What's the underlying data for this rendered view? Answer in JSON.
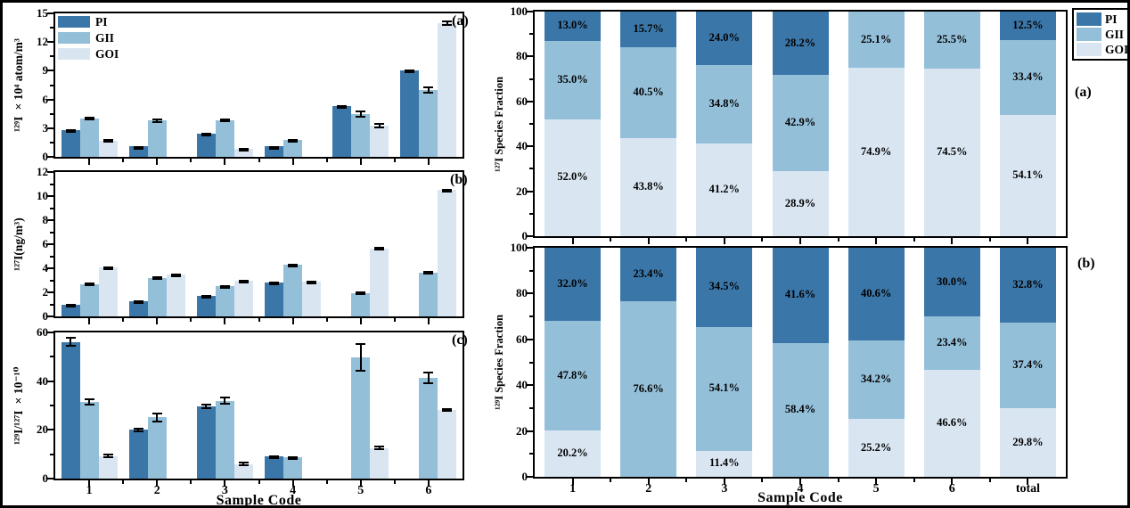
{
  "colors": {
    "PI": "#3B76A8",
    "GII": "#94BFD9",
    "GOI": "#D9E6F2",
    "axis": "#000000"
  },
  "legend": {
    "items": [
      {
        "label": "PI"
      },
      {
        "label": "GII"
      },
      {
        "label": "GOI"
      }
    ]
  },
  "chart_data": [
    {
      "id": "left-a",
      "type": "bar",
      "panel_label": "(a)",
      "ylabel": "¹²⁹I ×10⁴ atom/m³",
      "ylim": [
        0,
        15
      ],
      "yticks": [
        0,
        3,
        6,
        9,
        12,
        15
      ],
      "categories": [
        "1",
        "2",
        "3",
        "4",
        "5",
        "6"
      ],
      "show_xticklabels": false,
      "series": [
        {
          "name": "PI",
          "values": [
            2.75,
            1.1,
            2.4,
            1.1,
            5.35,
            9.0
          ],
          "errors": [
            0.1,
            0.06,
            0.1,
            0.06,
            0.1,
            0.12
          ]
        },
        {
          "name": "GII",
          "values": [
            4.0,
            3.8,
            3.8,
            1.75,
            4.45,
            7.0
          ],
          "errors": [
            0.2,
            0.25,
            0.18,
            0.1,
            0.35,
            0.35
          ]
        },
        {
          "name": "GOI",
          "values": [
            1.7,
            null,
            0.85,
            null,
            3.25,
            14.0
          ],
          "errors": [
            0.18,
            null,
            0.1,
            null,
            0.25,
            0.3
          ]
        }
      ]
    },
    {
      "id": "left-b",
      "type": "bar",
      "panel_label": "(b)",
      "ylabel": "¹²⁷I(ng/m³)",
      "ylim": [
        0,
        12
      ],
      "yticks": [
        0,
        2,
        4,
        6,
        8,
        10,
        12
      ],
      "categories": [
        "1",
        "2",
        "3",
        "4",
        "5",
        "6"
      ],
      "show_xticklabels": false,
      "series": [
        {
          "name": "PI",
          "values": [
            1.0,
            1.25,
            1.7,
            2.85,
            null,
            null
          ],
          "errors": [
            0.04,
            0.06,
            0.05,
            0.06,
            null,
            null
          ]
        },
        {
          "name": "GII",
          "values": [
            2.7,
            3.2,
            2.5,
            4.3,
            1.95,
            3.6
          ],
          "errors": [
            0.08,
            0.12,
            0.1,
            0.1,
            0.15,
            0.15
          ]
        },
        {
          "name": "GOI",
          "values": [
            4.1,
            3.5,
            3.0,
            2.9,
            5.65,
            10.5
          ],
          "errors": [
            0.06,
            0.05,
            0.05,
            0.05,
            0.1,
            0.1
          ]
        }
      ]
    },
    {
      "id": "left-c",
      "type": "bar",
      "panel_label": "(c)",
      "ylabel": "¹²⁹I/¹²⁷I ×10⁻¹⁰",
      "ylim": [
        0,
        60
      ],
      "yticks": [
        0,
        20,
        40,
        60
      ],
      "categories": [
        "1",
        "2",
        "3",
        "4",
        "5",
        "6"
      ],
      "xlabel": "Sample Code",
      "show_xticklabels": true,
      "series": [
        {
          "name": "PI",
          "values": [
            56,
            20,
            29.6,
            9,
            null,
            null
          ],
          "errors": [
            2,
            1,
            1,
            0.4,
            null,
            null
          ]
        },
        {
          "name": "GII",
          "values": [
            31.5,
            25.2,
            32,
            8.6,
            49.8,
            41.3
          ],
          "errors": [
            1.6,
            2,
            1.8,
            0.6,
            5.8,
            2.6
          ]
        },
        {
          "name": "GOI",
          "values": [
            9.3,
            null,
            6,
            null,
            12.6,
            28.3
          ],
          "errors": [
            0.9,
            null,
            0.8,
            null,
            1,
            0.7
          ]
        }
      ]
    },
    {
      "id": "right-a",
      "type": "stacked-bar",
      "panel_label": "(a)",
      "ylabel": "¹²⁷I Species Fraction",
      "ylim": [
        0,
        100
      ],
      "yticks": [
        0,
        20,
        40,
        60,
        80,
        100
      ],
      "categories": [
        "1",
        "2",
        "3",
        "4",
        "5",
        "6",
        "total"
      ],
      "show_xticklabels": false,
      "series": [
        {
          "name": "GOI",
          "values": [
            52.0,
            43.8,
            41.2,
            28.9,
            74.9,
            74.5,
            54.1
          ]
        },
        {
          "name": "GII",
          "values": [
            35.0,
            40.5,
            34.8,
            42.9,
            25.1,
            25.5,
            33.4
          ]
        },
        {
          "name": "PI",
          "values": [
            13.0,
            15.7,
            24.0,
            28.2,
            null,
            null,
            12.5
          ]
        }
      ]
    },
    {
      "id": "right-b",
      "type": "stacked-bar",
      "panel_label": "(b)",
      "ylabel": "¹²⁹I Species Fraction",
      "ylim": [
        0,
        100
      ],
      "yticks": [
        0,
        20,
        40,
        60,
        80,
        100
      ],
      "categories": [
        "1",
        "2",
        "3",
        "4",
        "5",
        "6",
        "total"
      ],
      "xlabel": "Sample Code",
      "show_xticklabels": true,
      "series": [
        {
          "name": "GOI",
          "values": [
            20.2,
            null,
            11.4,
            null,
            25.2,
            46.6,
            29.8
          ]
        },
        {
          "name": "GII",
          "values": [
            47.8,
            76.6,
            54.1,
            58.4,
            34.2,
            23.4,
            37.4
          ]
        },
        {
          "name": "PI",
          "values": [
            32.0,
            23.4,
            34.5,
            41.6,
            40.6,
            30.0,
            32.8
          ]
        }
      ]
    }
  ]
}
